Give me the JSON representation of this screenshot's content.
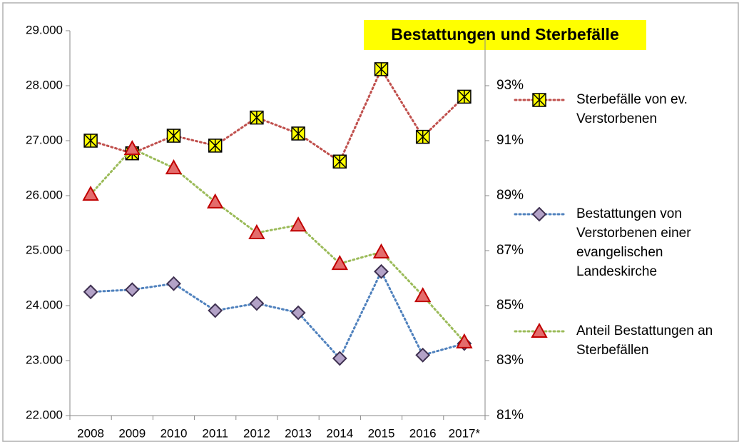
{
  "chart_data": {
    "type": "line",
    "title": "Bestattungen und Sterbefälle",
    "categories": [
      "2008",
      "2009",
      "2010",
      "2011",
      "2012",
      "2013",
      "2014",
      "2015",
      "2016",
      "2017*"
    ],
    "series": [
      {
        "name": "Sterbefälle von ev. Verstorbenen",
        "color": "#c0504d",
        "marker": "square",
        "marker_color": "#ffff00",
        "values": [
          27000,
          26770,
          27090,
          26910,
          27420,
          27130,
          26620,
          28300,
          27070,
          27800
        ]
      },
      {
        "name": "Bestattungen von Verstorbenen einer evangelischen Landeskirche",
        "color": "#4f81bd",
        "marker": "diamond",
        "marker_color": "#b3a2c7",
        "values": [
          24250,
          24290,
          24400,
          23910,
          24040,
          23870,
          23040,
          24620,
          23100,
          23310
        ]
      },
      {
        "name": "Anteil Bestattungen an Sterbefällen",
        "color": "#9bbb59",
        "marker": "triangle",
        "marker_color": "#e46c6c",
        "axis": "y2",
        "values": [
          89.05,
          90.71,
          90.01,
          88.77,
          87.65,
          87.93,
          86.53,
          86.95,
          85.36,
          83.68
        ]
      }
    ],
    "ylim": [
      22000,
      29000
    ],
    "yticks": [
      {
        "value": 22000,
        "label": "22.000"
      },
      {
        "value": 23000,
        "label": "23.000"
      },
      {
        "value": 24000,
        "label": "24.000"
      },
      {
        "value": 25000,
        "label": "25.000"
      },
      {
        "value": 26000,
        "label": "26.000"
      },
      {
        "value": 27000,
        "label": "27.000"
      },
      {
        "value": 28000,
        "label": "28.000"
      },
      {
        "value": 29000,
        "label": "29.000"
      }
    ],
    "y2lim": [
      81,
      95
    ],
    "y2ticks": [
      {
        "value": 81,
        "label": "81%"
      },
      {
        "value": 83,
        "label": "83%"
      },
      {
        "value": 85,
        "label": "85%"
      },
      {
        "value": 87,
        "label": "87%"
      },
      {
        "value": 89,
        "label": "89%"
      },
      {
        "value": 91,
        "label": "91%"
      },
      {
        "value": 93,
        "label": "93%"
      }
    ],
    "grid": false,
    "legend": "right"
  }
}
